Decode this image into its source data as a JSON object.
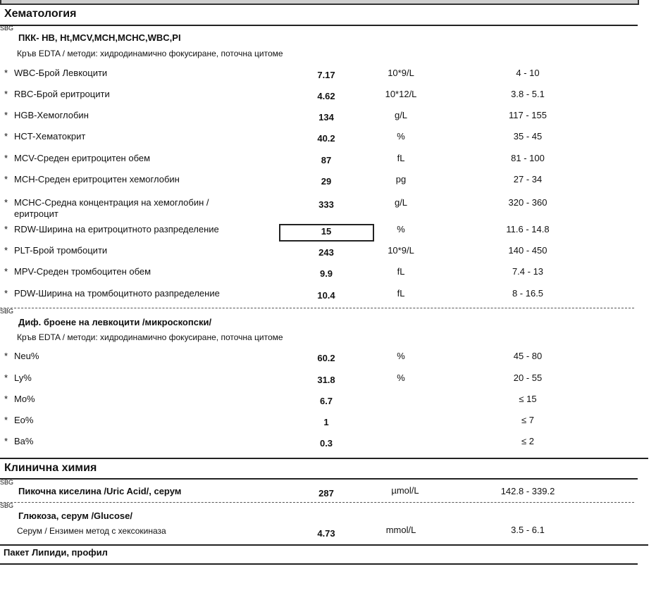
{
  "sections": [
    {
      "title": "Хематология",
      "groups": [
        {
          "code": "SBG",
          "title": "ПКК- HB, Ht,MCV,MCH,MCHC,WBC,PI",
          "method": "Кръв EDTA / методи: хидродинамично фокусиране, поточна цитоме",
          "rows": [
            {
              "flag": "*",
              "name": "WBC-Брой Левкоцити",
              "value": "7.17",
              "unit": "10*9/L",
              "range": "4 - 10"
            },
            {
              "flag": "*",
              "name": "RBC-Брой еритроцити",
              "value": "4.62",
              "unit": "10*12/L",
              "range": "3.8 - 5.1"
            },
            {
              "flag": "*",
              "name": "HGB-Хемоглобин",
              "value": "134",
              "unit": "g/L",
              "range": "117 - 155"
            },
            {
              "flag": "*",
              "name": "HCT-Хематокрит",
              "value": "40.2",
              "unit": "%",
              "range": "35 - 45"
            },
            {
              "flag": "*",
              "name": "MCV-Среден еритроцитен обем",
              "value": "87",
              "unit": "fL",
              "range": "81 - 100"
            },
            {
              "flag": "*",
              "name": "MCH-Среден еритроцитен хемоглобин",
              "value": "29",
              "unit": "pg",
              "range": "27 - 34"
            },
            {
              "flag": "*",
              "name": "MCHC-Средна концентрация на хемоглобин /\nеритроцит",
              "value": "333",
              "unit": "g/L",
              "range": "320 - 360"
            },
            {
              "flag": "*",
              "name": "RDW-Ширина на еритроцитното разпределение",
              "value": "15",
              "unit": "%",
              "range": "11.6 - 14.8"
            },
            {
              "flag": "*",
              "name": "PLT-Брой тромбоцити",
              "value": "243",
              "unit": "10*9/L",
              "range": "140 - 450"
            },
            {
              "flag": "*",
              "name": "MPV-Среден тромбоцитен обем",
              "value": "9.9",
              "unit": "fL",
              "range": "7.4 - 13"
            },
            {
              "flag": "*",
              "name": "PDW-Ширина на тромбоцитното разпределение",
              "value": "10.4",
              "unit": "fL",
              "range": "8 - 16.5"
            }
          ]
        },
        {
          "code": "SBG",
          "title": "Диф. броене на левкоцити /микроскопски/",
          "method": "Кръв EDTA / методи: хидродинамично фокусиране, поточна цитоме",
          "rows": [
            {
              "flag": "*",
              "name": "Neu%",
              "value": "60.2",
              "unit": "%",
              "range": "45 - 80"
            },
            {
              "flag": "*",
              "name": "Ly%",
              "value": "31.8",
              "unit": "%",
              "range": "20 - 55"
            },
            {
              "flag": "*",
              "name": "Mo%",
              "value": "6.7",
              "range": "≤ 15"
            },
            {
              "flag": "*",
              "name": "Eo%",
              "value": "1",
              "range": "≤ 7"
            },
            {
              "flag": "*",
              "name": "Ba%",
              "value": "0.3",
              "range": "≤ 2"
            }
          ]
        }
      ]
    },
    {
      "title": "Клинична химия",
      "groups": [
        {
          "code": "SBG",
          "title": "Пикочна киселина /Uric Acid/, серум",
          "value": "287",
          "unit": "µmol/L",
          "range": "142.8 - 339.2"
        },
        {
          "code": "SBG",
          "title": "Глюкоза, серум /Glucose/",
          "method": "Серум / Ензимен метод с хексокиназа",
          "value": "4.73",
          "unit": "mmol/L",
          "range": "3.5 - 6.1"
        }
      ]
    },
    {
      "title": "Пакет Липиди, профил"
    }
  ]
}
